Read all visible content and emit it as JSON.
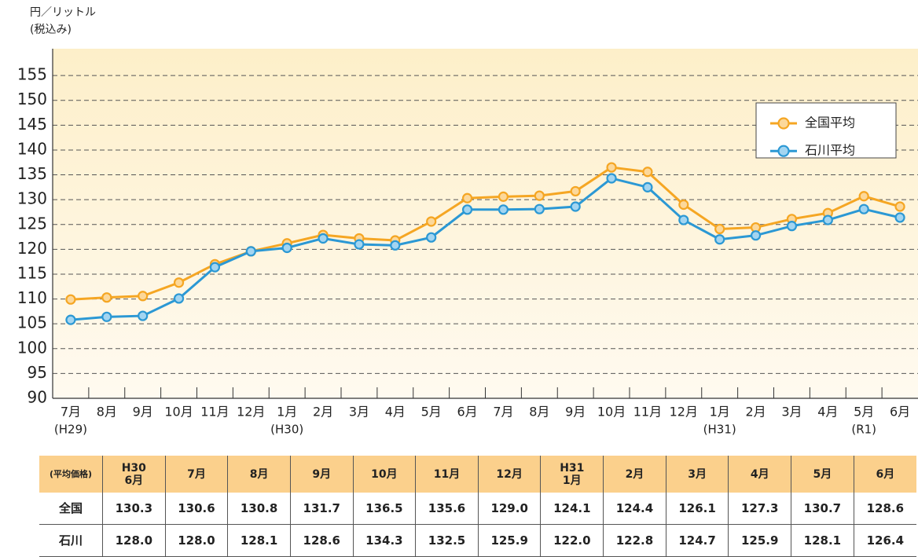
{
  "chart_data": {
    "type": "line",
    "ylabel": "円／リットル",
    "ylabel_note": "(税込み)",
    "categories": [
      "7月",
      "8月",
      "9月",
      "10月",
      "11月",
      "12月",
      "1月",
      "2月",
      "3月",
      "4月",
      "5月",
      "6月",
      "7月",
      "8月",
      "9月",
      "10月",
      "11月",
      "12月",
      "1月",
      "2月",
      "3月",
      "4月",
      "5月",
      "6月"
    ],
    "category_eras": [
      "(H29)",
      null,
      null,
      null,
      null,
      null,
      "(H30)",
      null,
      null,
      null,
      null,
      null,
      null,
      null,
      null,
      null,
      null,
      null,
      "(H31)",
      null,
      null,
      null,
      "(R1)",
      null
    ],
    "series": [
      {
        "name": "全国平均",
        "color": "#f5a623",
        "marker_fill": "#fcd89a",
        "values": [
          109.9,
          110.3,
          110.6,
          113.3,
          117.0,
          119.6,
          121.2,
          122.9,
          122.2,
          121.8,
          125.6,
          130.3,
          130.6,
          130.8,
          131.7,
          136.5,
          135.6,
          129.0,
          124.1,
          124.4,
          126.1,
          127.3,
          130.7,
          128.6
        ]
      },
      {
        "name": "石川平均",
        "color": "#2b98d4",
        "marker_fill": "#a3d5f1",
        "values": [
          105.8,
          106.4,
          106.6,
          110.1,
          116.4,
          119.6,
          120.3,
          122.2,
          121.0,
          120.8,
          122.4,
          128.0,
          128.0,
          128.1,
          128.6,
          134.3,
          132.5,
          125.9,
          122.0,
          122.8,
          124.7,
          125.9,
          128.1,
          126.4
        ]
      }
    ],
    "ylim": [
      90,
      160.4
    ],
    "yticks": [
      90,
      95,
      100,
      105,
      110,
      115,
      120,
      125,
      130,
      135,
      140,
      145,
      150,
      155
    ],
    "grid": true,
    "legend": "upper right"
  },
  "table": {
    "header": [
      "(平均価格)",
      "H30\n6月",
      "7月",
      "8月",
      "9月",
      "10月",
      "11月",
      "12月",
      "H31\n1月",
      "2月",
      "3月",
      "4月",
      "5月",
      "6月"
    ],
    "rows": [
      [
        "全国",
        "130.3",
        "130.6",
        "130.8",
        "131.7",
        "136.5",
        "135.6",
        "129.0",
        "124.1",
        "124.4",
        "126.1",
        "127.3",
        "130.7",
        "128.6"
      ],
      [
        "石川",
        "128.0",
        "128.0",
        "128.1",
        "128.6",
        "134.3",
        "132.5",
        "125.9",
        "122.0",
        "122.8",
        "124.7",
        "125.9",
        "128.1",
        "126.4"
      ]
    ]
  }
}
